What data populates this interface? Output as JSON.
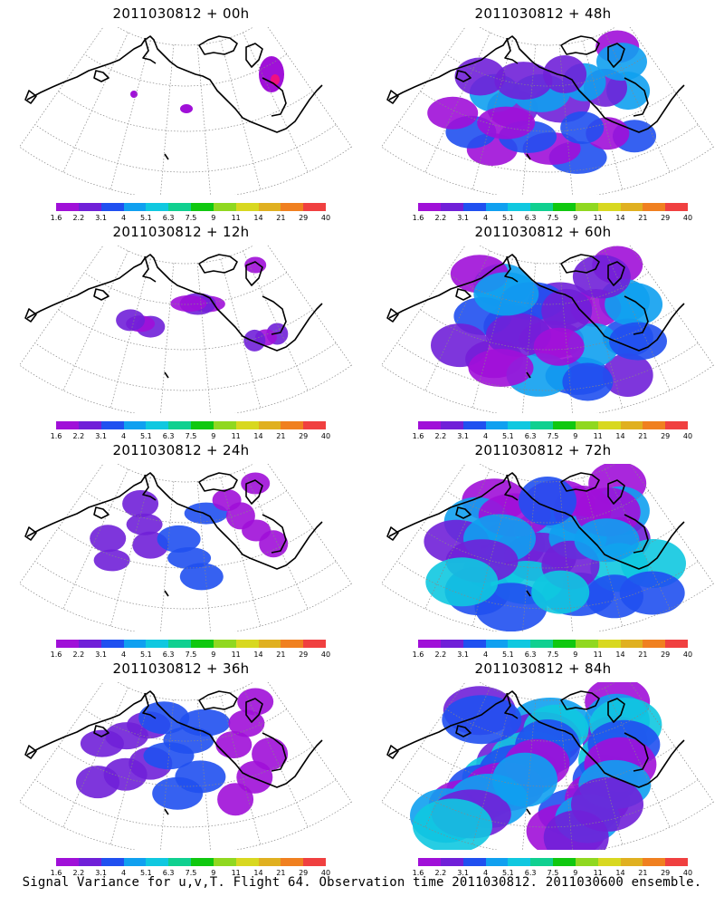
{
  "panels": [
    {
      "title": "2011030812 + 00h",
      "intensity": 0
    },
    {
      "title": "2011030812 + 48h",
      "intensity": 4
    },
    {
      "title": "2011030812 + 12h",
      "intensity": 1
    },
    {
      "title": "2011030812 + 60h",
      "intensity": 5
    },
    {
      "title": "2011030812 + 24h",
      "intensity": 2
    },
    {
      "title": "2011030812 + 72h",
      "intensity": 6
    },
    {
      "title": "2011030812 + 36h",
      "intensity": 3
    },
    {
      "title": "2011030812 + 84h",
      "intensity": 7
    }
  ],
  "colorbar": {
    "labels": [
      "1.6",
      "2.2",
      "3.1",
      "4",
      "5.1",
      "6.3",
      "7.5",
      "9",
      "11",
      "14",
      "21",
      "29",
      "40"
    ],
    "colors": [
      "#a010d8",
      "#7020d8",
      "#2050f0",
      "#10a0f0",
      "#10c8e0",
      "#10d090",
      "#10c810",
      "#90d820",
      "#d8d820",
      "#e0b020",
      "#f08020",
      "#f04040",
      "#f01080"
    ]
  },
  "footer": "Signal Variance for u,v,T. Flight 64. Observation time 2011030812. 2011030600 ensemble."
}
